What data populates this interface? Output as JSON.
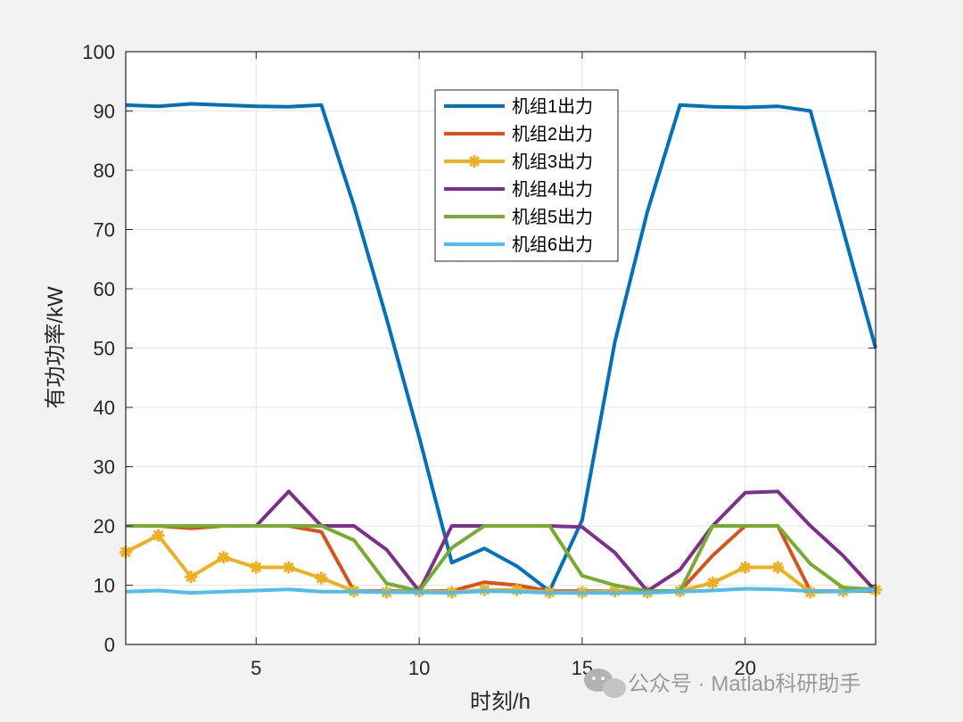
{
  "chart_data": {
    "type": "line",
    "xlabel": "时刻/h",
    "ylabel": "有功功率/kW",
    "xlim": [
      1,
      24
    ],
    "ylim": [
      0,
      100
    ],
    "xticks": [
      5,
      10,
      15,
      20
    ],
    "yticks": [
      0,
      10,
      20,
      30,
      40,
      50,
      60,
      70,
      80,
      90,
      100
    ],
    "grid": true,
    "legend_position": "top-center",
    "x": [
      1,
      2,
      3,
      4,
      5,
      6,
      7,
      8,
      9,
      10,
      11,
      12,
      13,
      14,
      15,
      16,
      17,
      18,
      19,
      20,
      21,
      22,
      23,
      24
    ],
    "series": [
      {
        "name": "机组1出力",
        "color": "#0072BD",
        "marker": "none",
        "values": [
          91,
          90.8,
          91.2,
          91,
          90.8,
          90.7,
          91,
          74,
          55,
          35,
          13.8,
          16.2,
          13.2,
          9,
          21,
          51,
          73,
          91,
          90.7,
          90.6,
          90.8,
          90,
          70,
          50
        ]
      },
      {
        "name": "机组2出力",
        "color": "#D95319",
        "marker": "none",
        "values": [
          20,
          20,
          19.6,
          20,
          20,
          20,
          19,
          9,
          9,
          9,
          9,
          10.5,
          10,
          9,
          9,
          9,
          9,
          9,
          15,
          20,
          20,
          9,
          9,
          9
        ]
      },
      {
        "name": "机组3出力",
        "color": "#EDB120",
        "marker": "asterisk",
        "values": [
          15.6,
          18.4,
          11.4,
          14.7,
          13,
          13,
          11.2,
          9,
          8.8,
          9,
          8.8,
          9.2,
          9.2,
          8.8,
          8.8,
          9,
          8.8,
          9,
          10.4,
          13,
          13,
          8.8,
          9,
          9.2
        ]
      },
      {
        "name": "机组4出力",
        "color": "#7E2F8E",
        "marker": "none",
        "values": [
          20,
          20,
          20,
          20,
          20,
          25.8,
          20,
          20,
          16,
          9,
          20,
          20,
          20,
          20,
          19.8,
          15.5,
          9,
          12.6,
          20,
          25.6,
          25.8,
          20,
          15,
          9
        ]
      },
      {
        "name": "机组5出力",
        "color": "#77AC30",
        "marker": "none",
        "values": [
          20,
          20,
          20,
          20,
          20,
          20,
          20,
          17.6,
          10.3,
          9,
          16.3,
          20,
          20,
          20,
          11.6,
          10,
          9,
          9,
          20,
          20,
          20,
          13.6,
          9.6,
          9.3
        ]
      },
      {
        "name": "机组6出力",
        "color": "#4DBEEE",
        "marker": "none",
        "values": [
          8.9,
          9.1,
          8.7,
          8.9,
          9.1,
          9.3,
          8.9,
          8.9,
          8.8,
          8.8,
          8.7,
          9,
          8.9,
          8.7,
          8.7,
          8.7,
          8.7,
          8.9,
          9.1,
          9.4,
          9.3,
          9,
          8.9,
          9.2
        ]
      }
    ]
  },
  "watermark": {
    "text": "公众号 · Matlab科研助手"
  }
}
